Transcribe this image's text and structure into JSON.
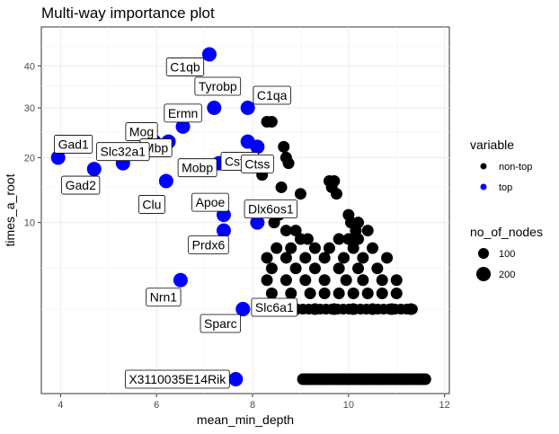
{
  "chart_data": {
    "type": "scatter",
    "title": "Multi-way importance plot",
    "xlabel": "mean_min_depth",
    "ylabel": "times_a_root",
    "y_scale": "sqrt",
    "xlim": [
      3.6,
      12.1
    ],
    "ylim": [
      0,
      48
    ],
    "x_ticks": [
      4,
      6,
      8,
      10,
      12
    ],
    "y_ticks": [
      10,
      20,
      30,
      40
    ],
    "grid": true,
    "legend": {
      "placement": "right",
      "color_title": "variable",
      "color_entries": [
        {
          "label": "non-top",
          "color": "#000000"
        },
        {
          "label": "top",
          "color": "#0000ff"
        }
      ],
      "size_title": "no_of_nodes",
      "size_entries": [
        {
          "label": "100",
          "value": 100
        },
        {
          "label": "200",
          "value": 200
        }
      ]
    },
    "top_series": [
      {
        "name": "C1qb",
        "x": 7.1,
        "y": 43,
        "size": 200
      },
      {
        "name": "Tyrobp",
        "x": 7.2,
        "y": 30,
        "size": 200
      },
      {
        "name": "C1qa",
        "x": 7.9,
        "y": 30,
        "size": 200
      },
      {
        "name": "Ermn",
        "x": 6.55,
        "y": 26,
        "size": 200
      },
      {
        "name": "Mog",
        "x": 5.95,
        "y": 23,
        "size": 200
      },
      {
        "name": "Csf1r",
        "x": 7.9,
        "y": 23,
        "size": 200
      },
      {
        "name": "Mbp",
        "x": 6.25,
        "y": 23,
        "size": 200
      },
      {
        "name": "Gad1",
        "x": 3.95,
        "y": 20,
        "size": 200
      },
      {
        "name": "Slc32a1",
        "x": 5.3,
        "y": 19,
        "size": 200
      },
      {
        "name": "Gad2",
        "x": 4.7,
        "y": 18,
        "size": 200
      },
      {
        "name": "Mobp",
        "x": 7.3,
        "y": 19,
        "size": 200
      },
      {
        "name": "Ctss",
        "x": 8.1,
        "y": 22,
        "size": 200
      },
      {
        "name": "Clu",
        "x": 6.2,
        "y": 16,
        "size": 200
      },
      {
        "name": "Apoe",
        "x": 7.4,
        "y": 11,
        "size": 200
      },
      {
        "name": "Dlx6os1",
        "x": 8.1,
        "y": 10,
        "size": 200
      },
      {
        "name": "Prdx6",
        "x": 7.4,
        "y": 9,
        "size": 200
      },
      {
        "name": "Nrn1",
        "x": 6.5,
        "y": 4,
        "size": 200
      },
      {
        "name": "Slc6a1",
        "x": 7.8,
        "y": 2,
        "size": 200
      },
      {
        "name": "Sparc",
        "x": 7.8,
        "y": 2,
        "size": 200
      },
      {
        "name": "X3110035E14Rik",
        "x": 7.65,
        "y": 0,
        "size": 200
      }
    ],
    "labels": [
      "C1qb",
      "Tyrobp",
      "C1qa",
      "Ermn",
      "Mog",
      "Csf1r",
      "Mbp",
      "Gad1",
      "Slc32a1",
      "Gad2",
      "Mobp",
      "Ctss",
      "Clu",
      "Apoe",
      "Dlx6os1",
      "Prdx6",
      "Nrn1",
      "Slc6a1",
      "Sparc",
      "X3110035E14Rik"
    ],
    "nontop_series": [
      {
        "x": 8.3,
        "y": 27
      },
      {
        "x": 8.4,
        "y": 27
      },
      {
        "x": 8.65,
        "y": 22
      },
      {
        "x": 8.7,
        "y": 20
      },
      {
        "x": 8.75,
        "y": 19
      },
      {
        "x": 8.2,
        "y": 17
      },
      {
        "x": 8.6,
        "y": 15
      },
      {
        "x": 9.0,
        "y": 14
      },
      {
        "x": 9.6,
        "y": 16
      },
      {
        "x": 9.7,
        "y": 16
      },
      {
        "x": 9.65,
        "y": 15
      },
      {
        "x": 9.75,
        "y": 14
      },
      {
        "x": 8.4,
        "y": 12
      },
      {
        "x": 8.55,
        "y": 11
      },
      {
        "x": 8.45,
        "y": 10
      },
      {
        "x": 10.0,
        "y": 11
      },
      {
        "x": 10.05,
        "y": 10
      },
      {
        "x": 10.2,
        "y": 10
      },
      {
        "x": 10.15,
        "y": 9
      },
      {
        "x": 10.4,
        "y": 9
      },
      {
        "x": 8.7,
        "y": 9
      },
      {
        "x": 8.9,
        "y": 9
      },
      {
        "x": 9.0,
        "y": 8
      },
      {
        "x": 9.15,
        "y": 8
      },
      {
        "x": 9.8,
        "y": 8
      },
      {
        "x": 10.0,
        "y": 8
      },
      {
        "x": 10.2,
        "y": 8
      },
      {
        "x": 8.5,
        "y": 7
      },
      {
        "x": 8.8,
        "y": 7
      },
      {
        "x": 9.3,
        "y": 7
      },
      {
        "x": 9.6,
        "y": 7
      },
      {
        "x": 10.1,
        "y": 7
      },
      {
        "x": 10.5,
        "y": 7
      },
      {
        "x": 8.3,
        "y": 6
      },
      {
        "x": 8.7,
        "y": 6
      },
      {
        "x": 9.1,
        "y": 6
      },
      {
        "x": 9.5,
        "y": 6
      },
      {
        "x": 9.9,
        "y": 6
      },
      {
        "x": 10.3,
        "y": 6
      },
      {
        "x": 10.8,
        "y": 6
      },
      {
        "x": 8.4,
        "y": 5
      },
      {
        "x": 8.9,
        "y": 5
      },
      {
        "x": 9.3,
        "y": 5
      },
      {
        "x": 9.8,
        "y": 5
      },
      {
        "x": 10.2,
        "y": 5
      },
      {
        "x": 10.6,
        "y": 5
      },
      {
        "x": 8.3,
        "y": 4
      },
      {
        "x": 8.7,
        "y": 4
      },
      {
        "x": 9.1,
        "y": 4
      },
      {
        "x": 9.5,
        "y": 4
      },
      {
        "x": 9.95,
        "y": 4
      },
      {
        "x": 10.3,
        "y": 4
      },
      {
        "x": 10.7,
        "y": 4
      },
      {
        "x": 11.0,
        "y": 4
      },
      {
        "x": 8.4,
        "y": 3
      },
      {
        "x": 8.8,
        "y": 3
      },
      {
        "x": 9.2,
        "y": 3
      },
      {
        "x": 9.5,
        "y": 3
      },
      {
        "x": 9.8,
        "y": 3
      },
      {
        "x": 10.1,
        "y": 3
      },
      {
        "x": 10.4,
        "y": 3
      },
      {
        "x": 10.7,
        "y": 3
      },
      {
        "x": 11.0,
        "y": 3
      },
      {
        "x": 8.5,
        "y": 2
      },
      {
        "x": 8.9,
        "y": 2
      },
      {
        "x": 9.3,
        "y": 2
      },
      {
        "x": 9.7,
        "y": 2
      },
      {
        "x": 10.1,
        "y": 2
      },
      {
        "x": 10.5,
        "y": 2
      },
      {
        "x": 10.9,
        "y": 2
      },
      {
        "x": 11.3,
        "y": 2
      },
      {
        "x": 9.1,
        "y": 0
      },
      {
        "x": 9.5,
        "y": 0
      },
      {
        "x": 9.9,
        "y": 0
      },
      {
        "x": 10.3,
        "y": 0
      },
      {
        "x": 10.7,
        "y": 0
      },
      {
        "x": 11.1,
        "y": 0
      },
      {
        "x": 11.5,
        "y": 0
      }
    ]
  }
}
